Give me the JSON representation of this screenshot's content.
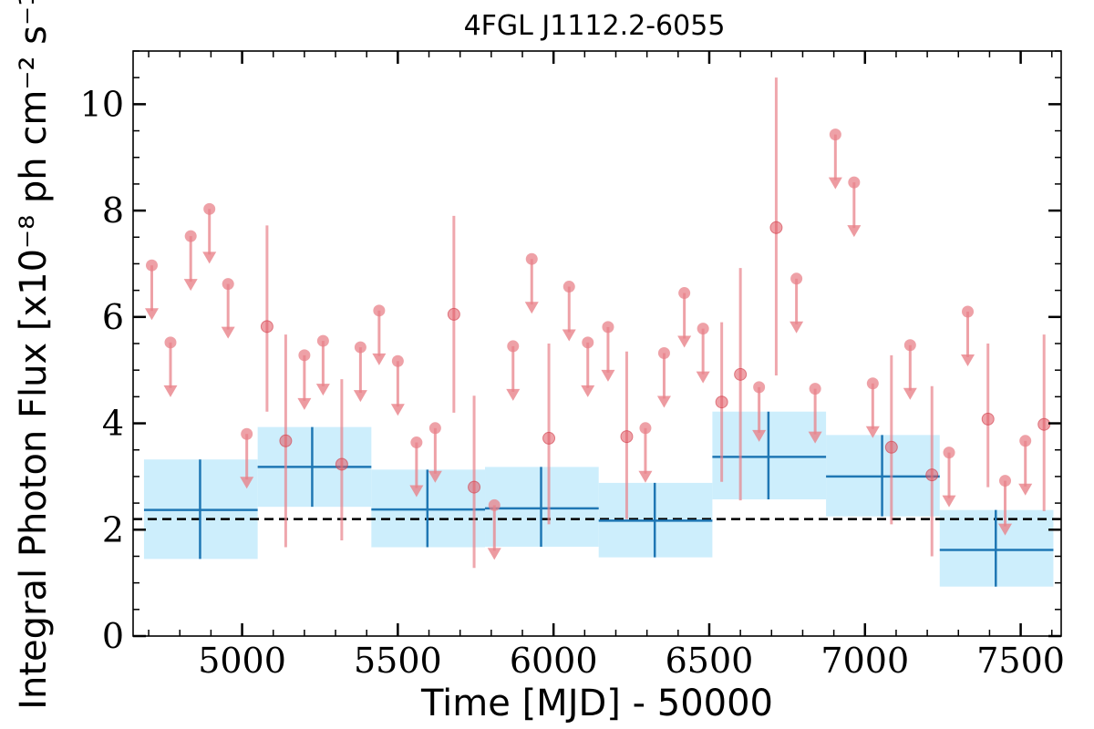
{
  "chart_data": {
    "type": "scatter",
    "title": "4FGL J1112.2-6055",
    "xlabel": "Time [MJD] - 50000",
    "ylabel": "Integral Photon Flux [x10⁻⁸ ph cm⁻² s⁻¹]",
    "xlim": [
      4650,
      7630
    ],
    "ylim": [
      0,
      11
    ],
    "x_ticks": [
      5000,
      5500,
      6000,
      6500,
      7000,
      7500
    ],
    "x_tick_labels": [
      "5000",
      "5500",
      "6000",
      "6500",
      "7000",
      "7500"
    ],
    "y_ticks": [
      0,
      2,
      4,
      6,
      8,
      10
    ],
    "y_tick_labels": [
      "0",
      "2",
      "4",
      "6",
      "8",
      "10"
    ],
    "baseline_flux": 2.2,
    "grid": false,
    "colors": {
      "short_bins": "#e8828a",
      "long_bins": "#1f77b4",
      "long_band": "#cdeefc",
      "baseline": "#000000"
    },
    "short_bins_detections": [
      {
        "x": 5080,
        "y": 5.82,
        "ylow": 4.22,
        "yhigh": 7.72
      },
      {
        "x": 5140,
        "y": 3.67,
        "ylow": 1.67,
        "yhigh": 5.67
      },
      {
        "x": 5320,
        "y": 3.23,
        "ylow": 1.8,
        "yhigh": 4.83
      },
      {
        "x": 5680,
        "y": 6.05,
        "ylow": 4.2,
        "yhigh": 7.9
      },
      {
        "x": 5745,
        "y": 2.8,
        "ylow": 1.28,
        "yhigh": 4.52
      },
      {
        "x": 5985,
        "y": 3.72,
        "ylow": 2.1,
        "yhigh": 5.5
      },
      {
        "x": 6235,
        "y": 3.75,
        "ylow": 2.2,
        "yhigh": 5.35
      },
      {
        "x": 6540,
        "y": 4.4,
        "ylow": 2.9,
        "yhigh": 5.9
      },
      {
        "x": 6600,
        "y": 4.92,
        "ylow": 2.55,
        "yhigh": 6.92
      },
      {
        "x": 6715,
        "y": 7.68,
        "ylow": 4.9,
        "yhigh": 10.5
      },
      {
        "x": 7085,
        "y": 3.55,
        "ylow": 2.1,
        "yhigh": 5.28
      },
      {
        "x": 7215,
        "y": 3.03,
        "ylow": 1.5,
        "yhigh": 4.7
      },
      {
        "x": 7395,
        "y": 4.08,
        "ylow": 2.8,
        "yhigh": 5.5
      },
      {
        "x": 7575,
        "y": 3.98,
        "ylow": 2.35,
        "yhigh": 5.67
      }
    ],
    "short_bins_upper_limits": [
      {
        "x": 4710,
        "y": 6.97
      },
      {
        "x": 4770,
        "y": 5.52
      },
      {
        "x": 4835,
        "y": 7.52
      },
      {
        "x": 4895,
        "y": 8.03
      },
      {
        "x": 4955,
        "y": 6.62
      },
      {
        "x": 5015,
        "y": 3.8
      },
      {
        "x": 5200,
        "y": 5.28
      },
      {
        "x": 5260,
        "y": 5.55
      },
      {
        "x": 5380,
        "y": 5.43
      },
      {
        "x": 5440,
        "y": 6.12
      },
      {
        "x": 5500,
        "y": 5.17
      },
      {
        "x": 5560,
        "y": 3.64
      },
      {
        "x": 5620,
        "y": 3.91
      },
      {
        "x": 5810,
        "y": 2.46
      },
      {
        "x": 5870,
        "y": 5.45
      },
      {
        "x": 5930,
        "y": 7.09
      },
      {
        "x": 6050,
        "y": 6.57
      },
      {
        "x": 6110,
        "y": 5.52
      },
      {
        "x": 6175,
        "y": 5.81
      },
      {
        "x": 6295,
        "y": 3.91
      },
      {
        "x": 6355,
        "y": 5.32
      },
      {
        "x": 6420,
        "y": 6.45
      },
      {
        "x": 6480,
        "y": 5.78
      },
      {
        "x": 6660,
        "y": 4.68
      },
      {
        "x": 6780,
        "y": 6.72
      },
      {
        "x": 6840,
        "y": 4.65
      },
      {
        "x": 6905,
        "y": 9.43
      },
      {
        "x": 6965,
        "y": 8.53
      },
      {
        "x": 7025,
        "y": 4.75
      },
      {
        "x": 7145,
        "y": 5.47
      },
      {
        "x": 7270,
        "y": 3.45
      },
      {
        "x": 7330,
        "y": 6.1
      },
      {
        "x": 7450,
        "y": 2.92
      },
      {
        "x": 7515,
        "y": 3.67
      }
    ],
    "long_bins": [
      {
        "xmin": 4685,
        "xmax": 5050,
        "x": 4865,
        "y": 2.37,
        "ylow": 1.45,
        "yhigh": 3.32
      },
      {
        "xmin": 5050,
        "xmax": 5415,
        "x": 5225,
        "y": 3.18,
        "ylow": 2.43,
        "yhigh": 3.93
      },
      {
        "xmin": 5415,
        "xmax": 5780,
        "x": 5595,
        "y": 2.38,
        "ylow": 1.67,
        "yhigh": 3.13
      },
      {
        "xmin": 5780,
        "xmax": 6145,
        "x": 5960,
        "y": 2.4,
        "ylow": 1.68,
        "yhigh": 3.18
      },
      {
        "xmin": 6145,
        "xmax": 6510,
        "x": 6325,
        "y": 2.17,
        "ylow": 1.48,
        "yhigh": 2.88
      },
      {
        "xmin": 6510,
        "xmax": 6875,
        "x": 6690,
        "y": 3.37,
        "ylow": 2.57,
        "yhigh": 4.22
      },
      {
        "xmin": 6875,
        "xmax": 7240,
        "x": 7055,
        "y": 3.0,
        "ylow": 2.25,
        "yhigh": 3.78
      },
      {
        "xmin": 7240,
        "xmax": 7605,
        "x": 7420,
        "y": 1.62,
        "ylow": 0.93,
        "yhigh": 2.37
      }
    ]
  }
}
